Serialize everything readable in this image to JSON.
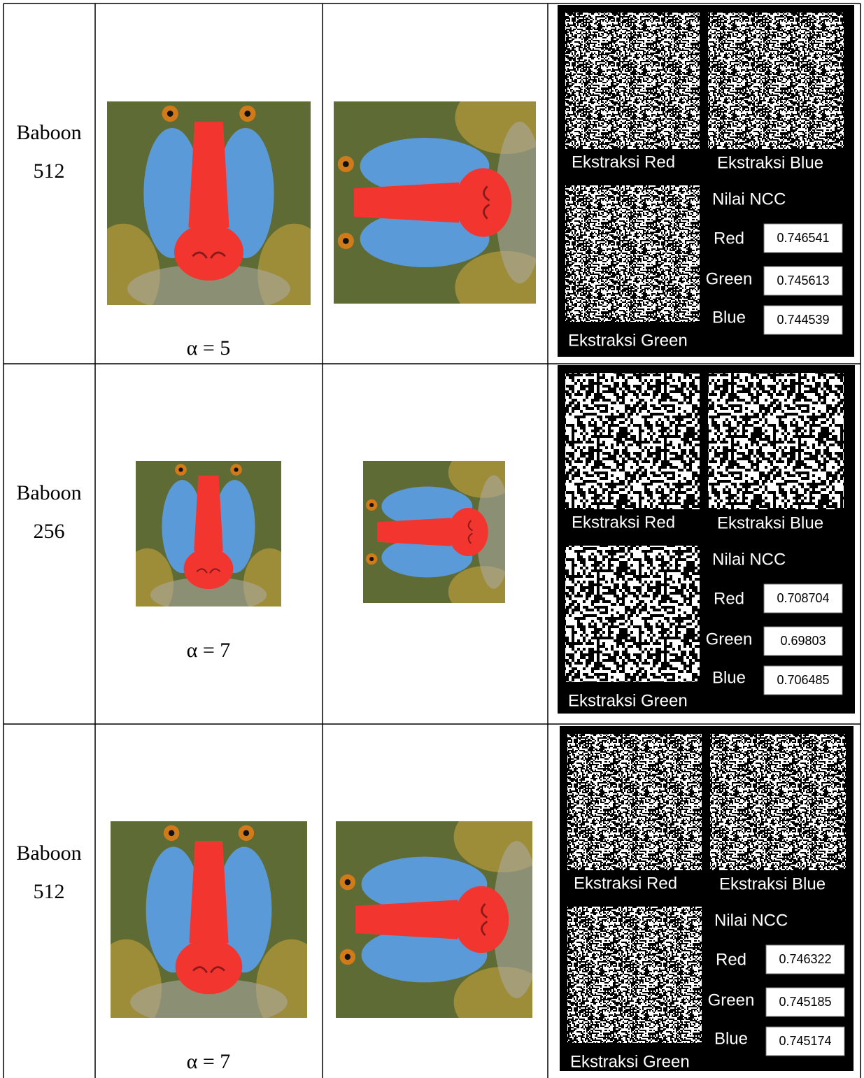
{
  "rows": [
    {
      "name": [
        "Baboon",
        "512"
      ],
      "alpha": "α = 5",
      "panel": {
        "red": "Ekstraksi Red",
        "blue": "Ekstraksi Blue",
        "green": "Ekstraksi Green",
        "ncc_title": "Nilai NCC",
        "ncc": [
          {
            "label": "Red",
            "value": "0.746541"
          },
          {
            "label": "Green",
            "value": "0.745613"
          },
          {
            "label": "Blue",
            "value": "0.744539"
          }
        ]
      }
    },
    {
      "name": [
        "Baboon",
        "256"
      ],
      "alpha": "α = 7",
      "panel": {
        "red": "Ekstraksi Red",
        "blue": "Ekstraksi Blue",
        "green": "Ekstraksi Green",
        "ncc_title": "Nilai NCC",
        "ncc": [
          {
            "label": "Red",
            "value": "0.708704"
          },
          {
            "label": "Green",
            "value": "0.69803"
          },
          {
            "label": "Blue",
            "value": "0.706485"
          }
        ]
      }
    },
    {
      "name": [
        "Baboon",
        "512"
      ],
      "alpha": "α = 7",
      "panel": {
        "red": "Ekstraksi Red",
        "blue": "Ekstraksi Blue",
        "green": "Ekstraksi Green",
        "ncc_title": "Nilai NCC",
        "ncc": [
          {
            "label": "Red",
            "value": "0.746322"
          },
          {
            "label": "Green",
            "value": "0.745185"
          },
          {
            "label": "Blue",
            "value": "0.745174"
          }
        ]
      }
    }
  ]
}
